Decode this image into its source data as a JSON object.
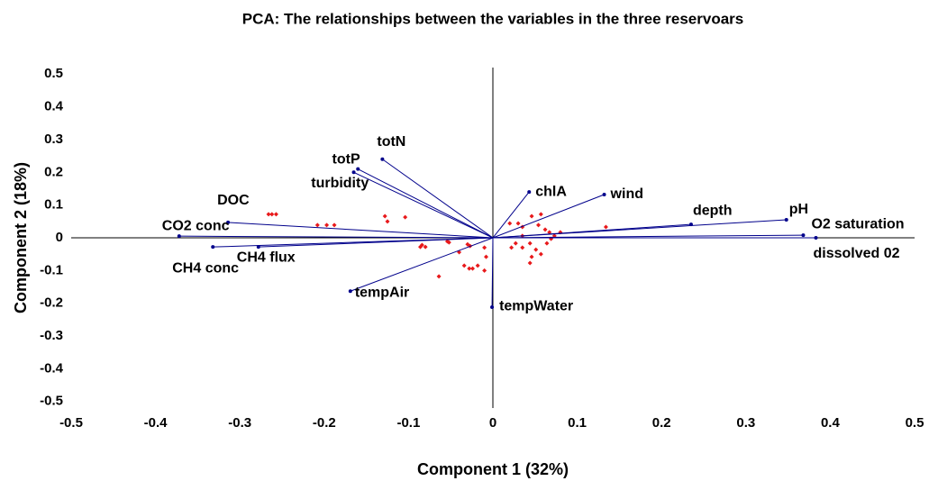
{
  "chart_data": {
    "type": "biplot",
    "title": "PCA: The relationships between the variables in the three reservoars",
    "xlabel": "Component 1 (32%)",
    "ylabel": "Component 2 (18%)",
    "xlim": [
      -0.5,
      0.5
    ],
    "ylim": [
      -0.52,
      0.52
    ],
    "xticks": [
      -0.5,
      -0.4,
      -0.3,
      -0.2,
      -0.1,
      0,
      0.1,
      0.2,
      0.3,
      0.4,
      0.5
    ],
    "yticks": [
      -0.5,
      -0.4,
      -0.3,
      -0.2,
      -0.1,
      0,
      0.1,
      0.2,
      0.3,
      0.4,
      0.5
    ],
    "vector_color": "#00008b",
    "vectors": [
      {
        "name": "totN",
        "x": -0.131,
        "y": 0.24
      },
      {
        "name": "totP",
        "x": -0.165,
        "y": 0.2
      },
      {
        "name": "turbidity",
        "x": -0.16,
        "y": 0.21
      },
      {
        "name": "DOC",
        "x": -0.314,
        "y": 0.047
      },
      {
        "name": "CO2 conc",
        "x": -0.372,
        "y": 0.005
      },
      {
        "name": "CH4 conc",
        "x": -0.332,
        "y": -0.028
      },
      {
        "name": "CH4 flux",
        "x": -0.278,
        "y": -0.028
      },
      {
        "name": "tempAir",
        "x": -0.169,
        "y": -0.163
      },
      {
        "name": "tempWater",
        "x": -0.001,
        "y": -0.212
      },
      {
        "name": "chlA",
        "x": 0.043,
        "y": 0.14
      },
      {
        "name": "wind",
        "x": 0.132,
        "y": 0.132
      },
      {
        "name": "depth",
        "x": 0.235,
        "y": 0.041
      },
      {
        "name": "pH",
        "x": 0.348,
        "y": 0.055
      },
      {
        "name": "O2 saturation",
        "x": 0.368,
        "y": 0.008
      },
      {
        "name": "dissolved 02",
        "x": 0.383,
        "y": 0.0
      }
    ],
    "points": {
      "color": "#e8191b",
      "x": [
        -0.266,
        -0.262,
        -0.257,
        -0.208,
        -0.197,
        -0.188,
        -0.128,
        -0.125,
        -0.104,
        -0.084,
        -0.08,
        -0.086,
        -0.054,
        -0.052,
        -0.064,
        -0.04,
        -0.034,
        -0.028,
        -0.024,
        -0.018,
        -0.008,
        -0.01,
        -0.027,
        -0.03,
        -0.01,
        0.03,
        0.035,
        0.046,
        0.057,
        0.054,
        0.062,
        0.067,
        0.073,
        0.035,
        0.027,
        0.022,
        0.035,
        0.044,
        0.051,
        0.057,
        0.046,
        0.044,
        0.02,
        0.08,
        0.134,
        0.069,
        0.064
      ],
      "y": [
        0.072,
        0.072,
        0.072,
        0.039,
        0.039,
        0.039,
        0.066,
        0.05,
        0.063,
        -0.022,
        -0.028,
        -0.028,
        -0.011,
        -0.014,
        -0.118,
        -0.044,
        -0.085,
        -0.094,
        -0.094,
        -0.085,
        -0.058,
        -0.1,
        -0.025,
        -0.02,
        -0.03,
        0.044,
        0.033,
        0.066,
        0.072,
        0.039,
        0.025,
        0.017,
        0.006,
        0.006,
        -0.017,
        -0.03,
        -0.03,
        -0.017,
        -0.036,
        -0.05,
        -0.058,
        -0.077,
        0.044,
        0.017,
        0.033,
        -0.003,
        -0.017
      ]
    }
  }
}
